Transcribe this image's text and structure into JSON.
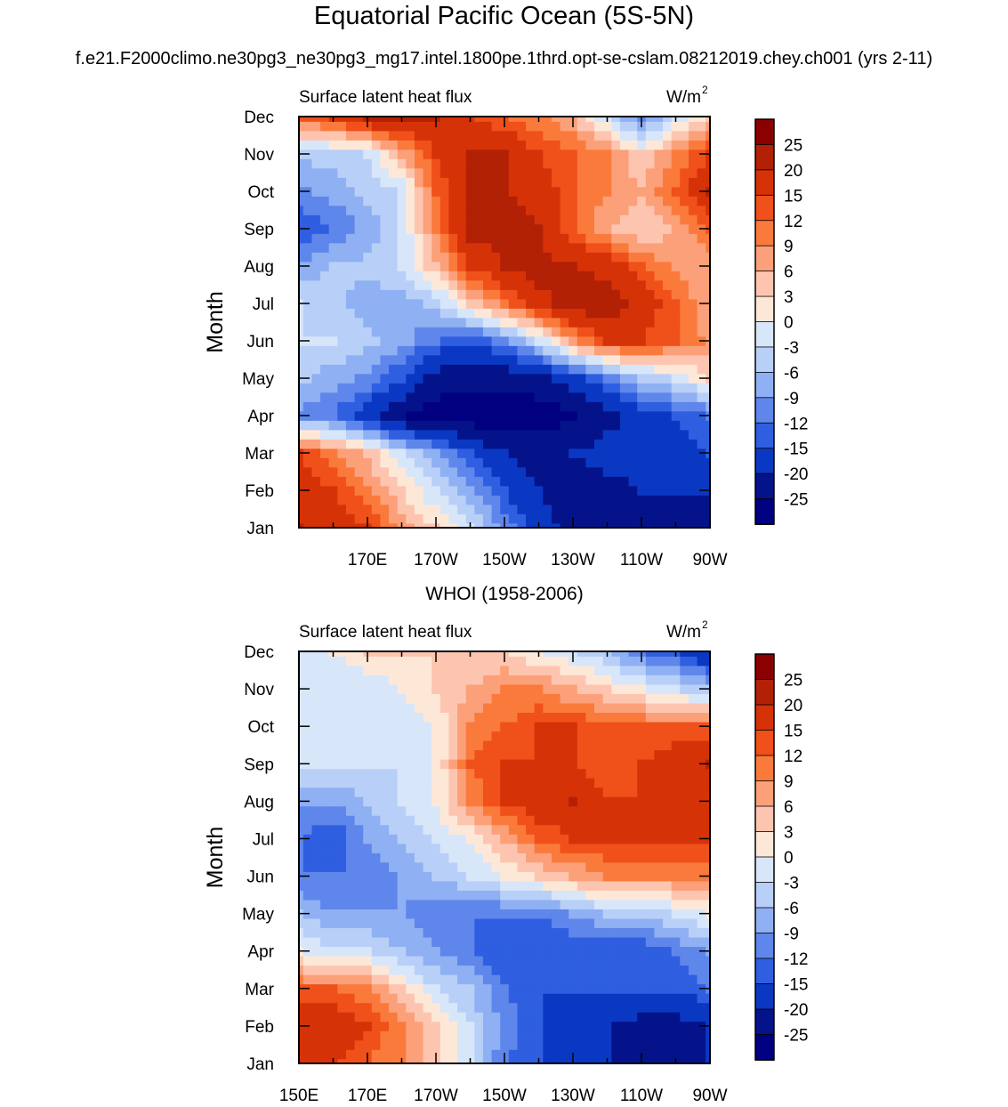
{
  "figure": {
    "title": "Equatorial Pacific Ocean (5S-5N)",
    "subtitle": "f.e21.F2000climo.ne30pg3_ne30pg3_mg17.intel.1800pe.1thrd.opt-se-cslam.08212019.chey.ch001 (yrs 2-11)",
    "second_panel_title": "WHOI (1958-2006)"
  },
  "colorbar": {
    "levels": [
      "25",
      "20",
      "15",
      "12",
      "9",
      "6",
      "3",
      "0",
      "-3",
      "-6",
      "-9",
      "-12",
      "-15",
      "-20",
      "-25"
    ],
    "colors": [
      "#8b0000",
      "#b22005",
      "#d63208",
      "#f0501a",
      "#fa7a3c",
      "#fca07a",
      "#fdc5b0",
      "#fde8d8",
      "#d8e6fa",
      "#b8cff8",
      "#8fb0f2",
      "#5f86ea",
      "#2f5fe0",
      "#0b38c2",
      "#05138a",
      "#000080"
    ]
  },
  "chart_data": [
    {
      "type": "heatmap",
      "title": "",
      "left_string": "Surface latent heat flux",
      "right_string": "W/m",
      "right_string_superscript": "2",
      "ylabel": "Month",
      "xlabel": "",
      "y_ticks": [
        "Jan",
        "Feb",
        "Mar",
        "Apr",
        "May",
        "Jun",
        "Jul",
        "Aug",
        "Sep",
        "Oct",
        "Nov",
        "Dec"
      ],
      "x_ticks": [
        "",
        "170E",
        "170W",
        "150W",
        "130W",
        "110W",
        "90W"
      ],
      "x_range": [
        "150E",
        "90W"
      ],
      "x": [
        "150E",
        "160E",
        "170E",
        "180",
        "170W",
        "160W",
        "150W",
        "140W",
        "130W",
        "120W",
        "110W",
        "100W",
        "90W"
      ],
      "y": [
        "Jan",
        "Feb",
        "Mar",
        "Apr",
        "May",
        "Jun",
        "Jul",
        "Aug",
        "Sep",
        "Oct",
        "Nov",
        "Dec"
      ],
      "z": [
        [
          20,
          18,
          15,
          8,
          3,
          -3,
          -10,
          -18,
          -22,
          -22,
          -22,
          -24,
          -22
        ],
        [
          18,
          15,
          10,
          3,
          -3,
          -8,
          -15,
          -20,
          -22,
          -22,
          -20,
          -20,
          -20
        ],
        [
          15,
          10,
          5,
          -3,
          -8,
          -15,
          -20,
          -22,
          -20,
          -18,
          -18,
          -18,
          -15
        ],
        [
          -10,
          -12,
          -18,
          -25,
          -28,
          -28,
          -28,
          -28,
          -26,
          -22,
          -18,
          -15,
          -12
        ],
        [
          -5,
          -8,
          -10,
          -15,
          -22,
          -24,
          -24,
          -22,
          -18,
          -12,
          -6,
          -3,
          3
        ],
        [
          -3,
          -3,
          -5,
          -8,
          -12,
          -15,
          -10,
          -3,
          8,
          15,
          15,
          12,
          8
        ],
        [
          -3,
          -5,
          -8,
          -8,
          -5,
          3,
          10,
          18,
          22,
          24,
          18,
          12,
          6
        ],
        [
          -8,
          -6,
          -5,
          -3,
          5,
          15,
          20,
          22,
          20,
          18,
          12,
          8,
          6
        ],
        [
          -15,
          -12,
          -8,
          -3,
          10,
          22,
          22,
          20,
          12,
          6,
          3,
          6,
          12
        ],
        [
          -10,
          -8,
          -5,
          -3,
          12,
          20,
          20,
          18,
          12,
          9,
          6,
          12,
          20
        ],
        [
          -5,
          -5,
          -3,
          6,
          15,
          20,
          20,
          15,
          12,
          9,
          3,
          9,
          15
        ],
        [
          12,
          15,
          20,
          22,
          20,
          15,
          12,
          10,
          6,
          -3,
          -10,
          -3,
          3
        ]
      ]
    },
    {
      "type": "heatmap",
      "title": "WHOI (1958-2006)",
      "left_string": "Surface latent heat flux",
      "right_string": "W/m",
      "right_string_superscript": "2",
      "ylabel": "Month",
      "xlabel": "",
      "y_ticks": [
        "Jan",
        "Feb",
        "Mar",
        "Apr",
        "May",
        "Jun",
        "Jul",
        "Aug",
        "Sep",
        "Oct",
        "Nov",
        "Dec"
      ],
      "x_ticks": [
        "150E",
        "170E",
        "170W",
        "150W",
        "130W",
        "110W",
        "90W"
      ],
      "x_range": [
        "150E",
        "90W"
      ],
      "x": [
        "150E",
        "160E",
        "170E",
        "180",
        "170W",
        "160W",
        "150W",
        "140W",
        "130W",
        "120W",
        "110W",
        "100W",
        "90W"
      ],
      "y": [
        "Jan",
        "Feb",
        "Mar",
        "Apr",
        "May",
        "Jun",
        "Jul",
        "Aug",
        "Sep",
        "Oct",
        "Nov",
        "Dec"
      ],
      "z": [
        [
          15,
          15,
          12,
          9,
          3,
          -3,
          -12,
          -15,
          -18,
          -20,
          -22,
          -22,
          -20
        ],
        [
          18,
          18,
          15,
          9,
          3,
          -3,
          -10,
          -15,
          -18,
          -20,
          -22,
          -22,
          -20
        ],
        [
          12,
          12,
          9,
          3,
          -3,
          -6,
          -12,
          -15,
          -15,
          -15,
          -15,
          -15,
          -12
        ],
        [
          0,
          -3,
          -3,
          -6,
          -9,
          -12,
          -15,
          -15,
          -15,
          -15,
          -15,
          -12,
          -9
        ],
        [
          -6,
          -9,
          -9,
          -9,
          -12,
          -12,
          -12,
          -12,
          -9,
          -6,
          -6,
          -3,
          0
        ],
        [
          -12,
          -12,
          -12,
          -9,
          -6,
          -3,
          0,
          3,
          6,
          9,
          9,
          9,
          9
        ],
        [
          -12,
          -15,
          -9,
          -6,
          -3,
          0,
          6,
          12,
          15,
          15,
          15,
          15,
          15
        ],
        [
          -9,
          -9,
          -6,
          -3,
          0,
          9,
          15,
          18,
          20,
          15,
          15,
          18,
          18
        ],
        [
          -3,
          -3,
          -3,
          -3,
          0,
          12,
          15,
          15,
          15,
          12,
          15,
          18,
          20
        ],
        [
          -3,
          -3,
          -3,
          -3,
          0,
          9,
          12,
          15,
          15,
          12,
          12,
          12,
          12
        ],
        [
          -3,
          -3,
          -3,
          0,
          3,
          6,
          9,
          9,
          6,
          3,
          0,
          -3,
          -6
        ],
        [
          -3,
          0,
          3,
          3,
          3,
          3,
          3,
          0,
          -3,
          -6,
          -12,
          -15,
          -20
        ]
      ]
    }
  ]
}
